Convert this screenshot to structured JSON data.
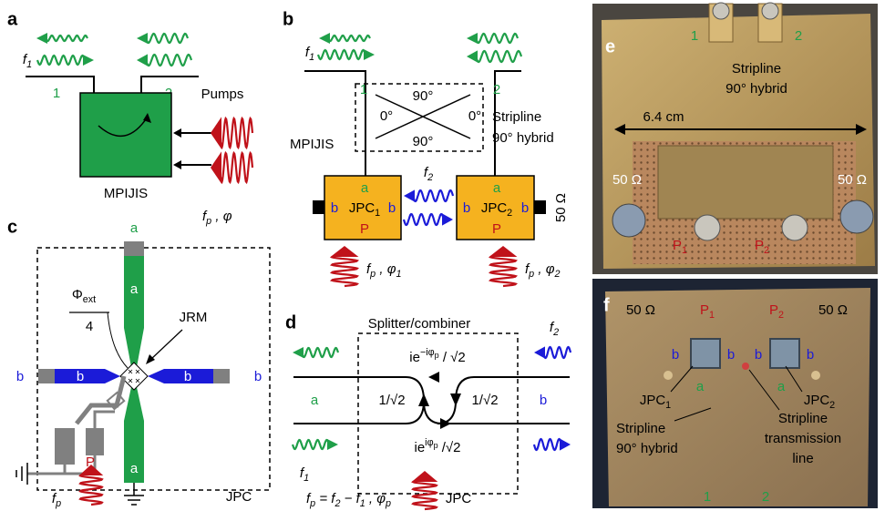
{
  "a": {
    "label": "a",
    "f1": [
      "f",
      "1"
    ],
    "port1": "1",
    "port2": "2",
    "pumps": "Pumps",
    "device": "MPIJIS",
    "pump": [
      "f",
      "p",
      " , φ"
    ]
  },
  "b": {
    "label": "b",
    "f1": [
      "f",
      "1"
    ],
    "port1": "1",
    "port2": "2",
    "angle_top": "90°",
    "angle_left": "0°",
    "angle_right": "0°",
    "angle_bottom": "90°",
    "hybrid": [
      "Stripline",
      "90° hybrid"
    ],
    "device": "MPIJIS",
    "f2": [
      "f",
      "2"
    ],
    "jpc1": {
      "a": "a",
      "name": [
        "JPC",
        "1"
      ],
      "b_left": "b",
      "b_right": "b",
      "p": "P"
    },
    "jpc2": {
      "a": "a",
      "name": [
        "JPC",
        "2"
      ],
      "b_left": "b",
      "b_right": "b",
      "p": "P"
    },
    "termination": "50 Ω",
    "pump1": [
      "f",
      "p",
      " , φ",
      "1"
    ],
    "pump2": [
      "f",
      "p",
      " , φ",
      "2"
    ]
  },
  "c": {
    "label": "c",
    "port_a_top": "a",
    "arm_a_top": "a",
    "flux": [
      "Φ",
      "ext"
    ],
    "flux_den": "4",
    "jrm": "JRM",
    "port_b_left": "b",
    "arm_b_left": "b",
    "arm_b_right": "b",
    "port_b_right": "b",
    "arm_a_bottom": "a",
    "pump_port": "P",
    "pump": [
      "f",
      "p"
    ],
    "device": "JPC"
  },
  "d": {
    "label": "d",
    "title": "Splitter/combiner",
    "upper": [
      "ie",
      "−iφ",
      "p",
      " / √2"
    ],
    "f2": [
      "f",
      "2"
    ],
    "port_a": "a",
    "ratio_left": "1/√2",
    "ratio_right": "1/√2",
    "port_b": "b",
    "lower": [
      "ie",
      "iφ",
      "p",
      " /√2"
    ],
    "f1": [
      "f",
      "1"
    ],
    "relation": [
      "f",
      "p",
      " = f",
      "2",
      " − f",
      "1",
      " , φ",
      "p"
    ],
    "device": "JPC"
  },
  "e": {
    "label": "e",
    "port1": "1",
    "port2": "2",
    "hybrid": [
      "Stripline",
      "90° hybrid"
    ],
    "width": "6.4 cm",
    "term_left": "50 Ω",
    "term_right": "50 Ω",
    "pump1": [
      "P",
      "1"
    ],
    "pump2": [
      "P",
      "2"
    ]
  },
  "f": {
    "label": "f",
    "term_left": "50 Ω",
    "pump1": [
      "P",
      "1"
    ],
    "pump2": [
      "P",
      "2"
    ],
    "term_right": "50 Ω",
    "b1": "b",
    "b2": "b",
    "b3": "b",
    "b4": "b",
    "a1": "a",
    "a2": "a",
    "jpc1": [
      "JPC",
      "1"
    ],
    "jpc2": [
      "JPC",
      "2"
    ],
    "hybrid": [
      "Stripline",
      "90° hybrid"
    ],
    "line": [
      "Stripline",
      "transmission",
      "line"
    ],
    "port1": "1",
    "port2": "2"
  }
}
